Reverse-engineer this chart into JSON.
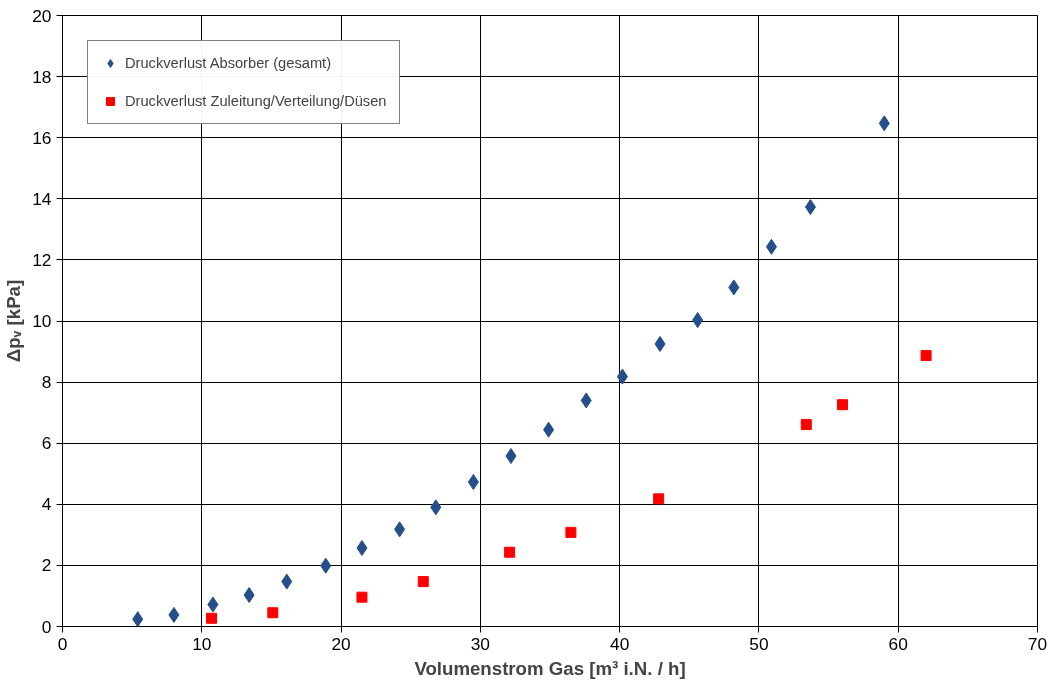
{
  "chart_data": {
    "type": "scatter",
    "xlabel": "Volumenstrom Gas [m³ i.N. / h]",
    "ylabel": "Δpᵥ [kPa]",
    "xlim": [
      0,
      70
    ],
    "xticks": [
      0,
      10,
      20,
      30,
      40,
      50,
      60,
      70
    ],
    "ylim": [
      0,
      20
    ],
    "yticks": [
      0,
      2,
      4,
      6,
      8,
      10,
      12,
      14,
      16,
      18,
      20
    ],
    "grid": true,
    "legend": "top left",
    "series": [
      {
        "name": "Druckverlust Absorber (gesamt)",
        "color": "#254f8a",
        "marker": "diamond",
        "x": [
          5.4,
          8.0,
          10.8,
          13.4,
          16.1,
          18.9,
          21.5,
          24.2,
          26.8,
          29.5,
          32.2,
          34.9,
          37.6,
          40.2,
          42.9,
          45.6,
          48.2,
          50.9,
          53.7,
          59.0
        ],
        "values": [
          0.24,
          0.38,
          0.72,
          1.03,
          1.47,
          1.99,
          2.57,
          3.18,
          3.9,
          4.73,
          5.58,
          6.44,
          7.4,
          8.18,
          9.25,
          10.03,
          11.1,
          12.43,
          13.73,
          16.47
        ]
      },
      {
        "name": "Druckverlust Zuleitung/Verteilung/Düsen",
        "color": "#ff0000",
        "marker": "square",
        "x": [
          10.7,
          15.1,
          21.5,
          25.9,
          32.1,
          36.5,
          42.8,
          53.4,
          56.0,
          62.0
        ],
        "values": [
          0.27,
          0.45,
          0.96,
          1.47,
          2.43,
          3.08,
          4.18,
          6.61,
          7.26,
          8.87
        ]
      }
    ]
  }
}
